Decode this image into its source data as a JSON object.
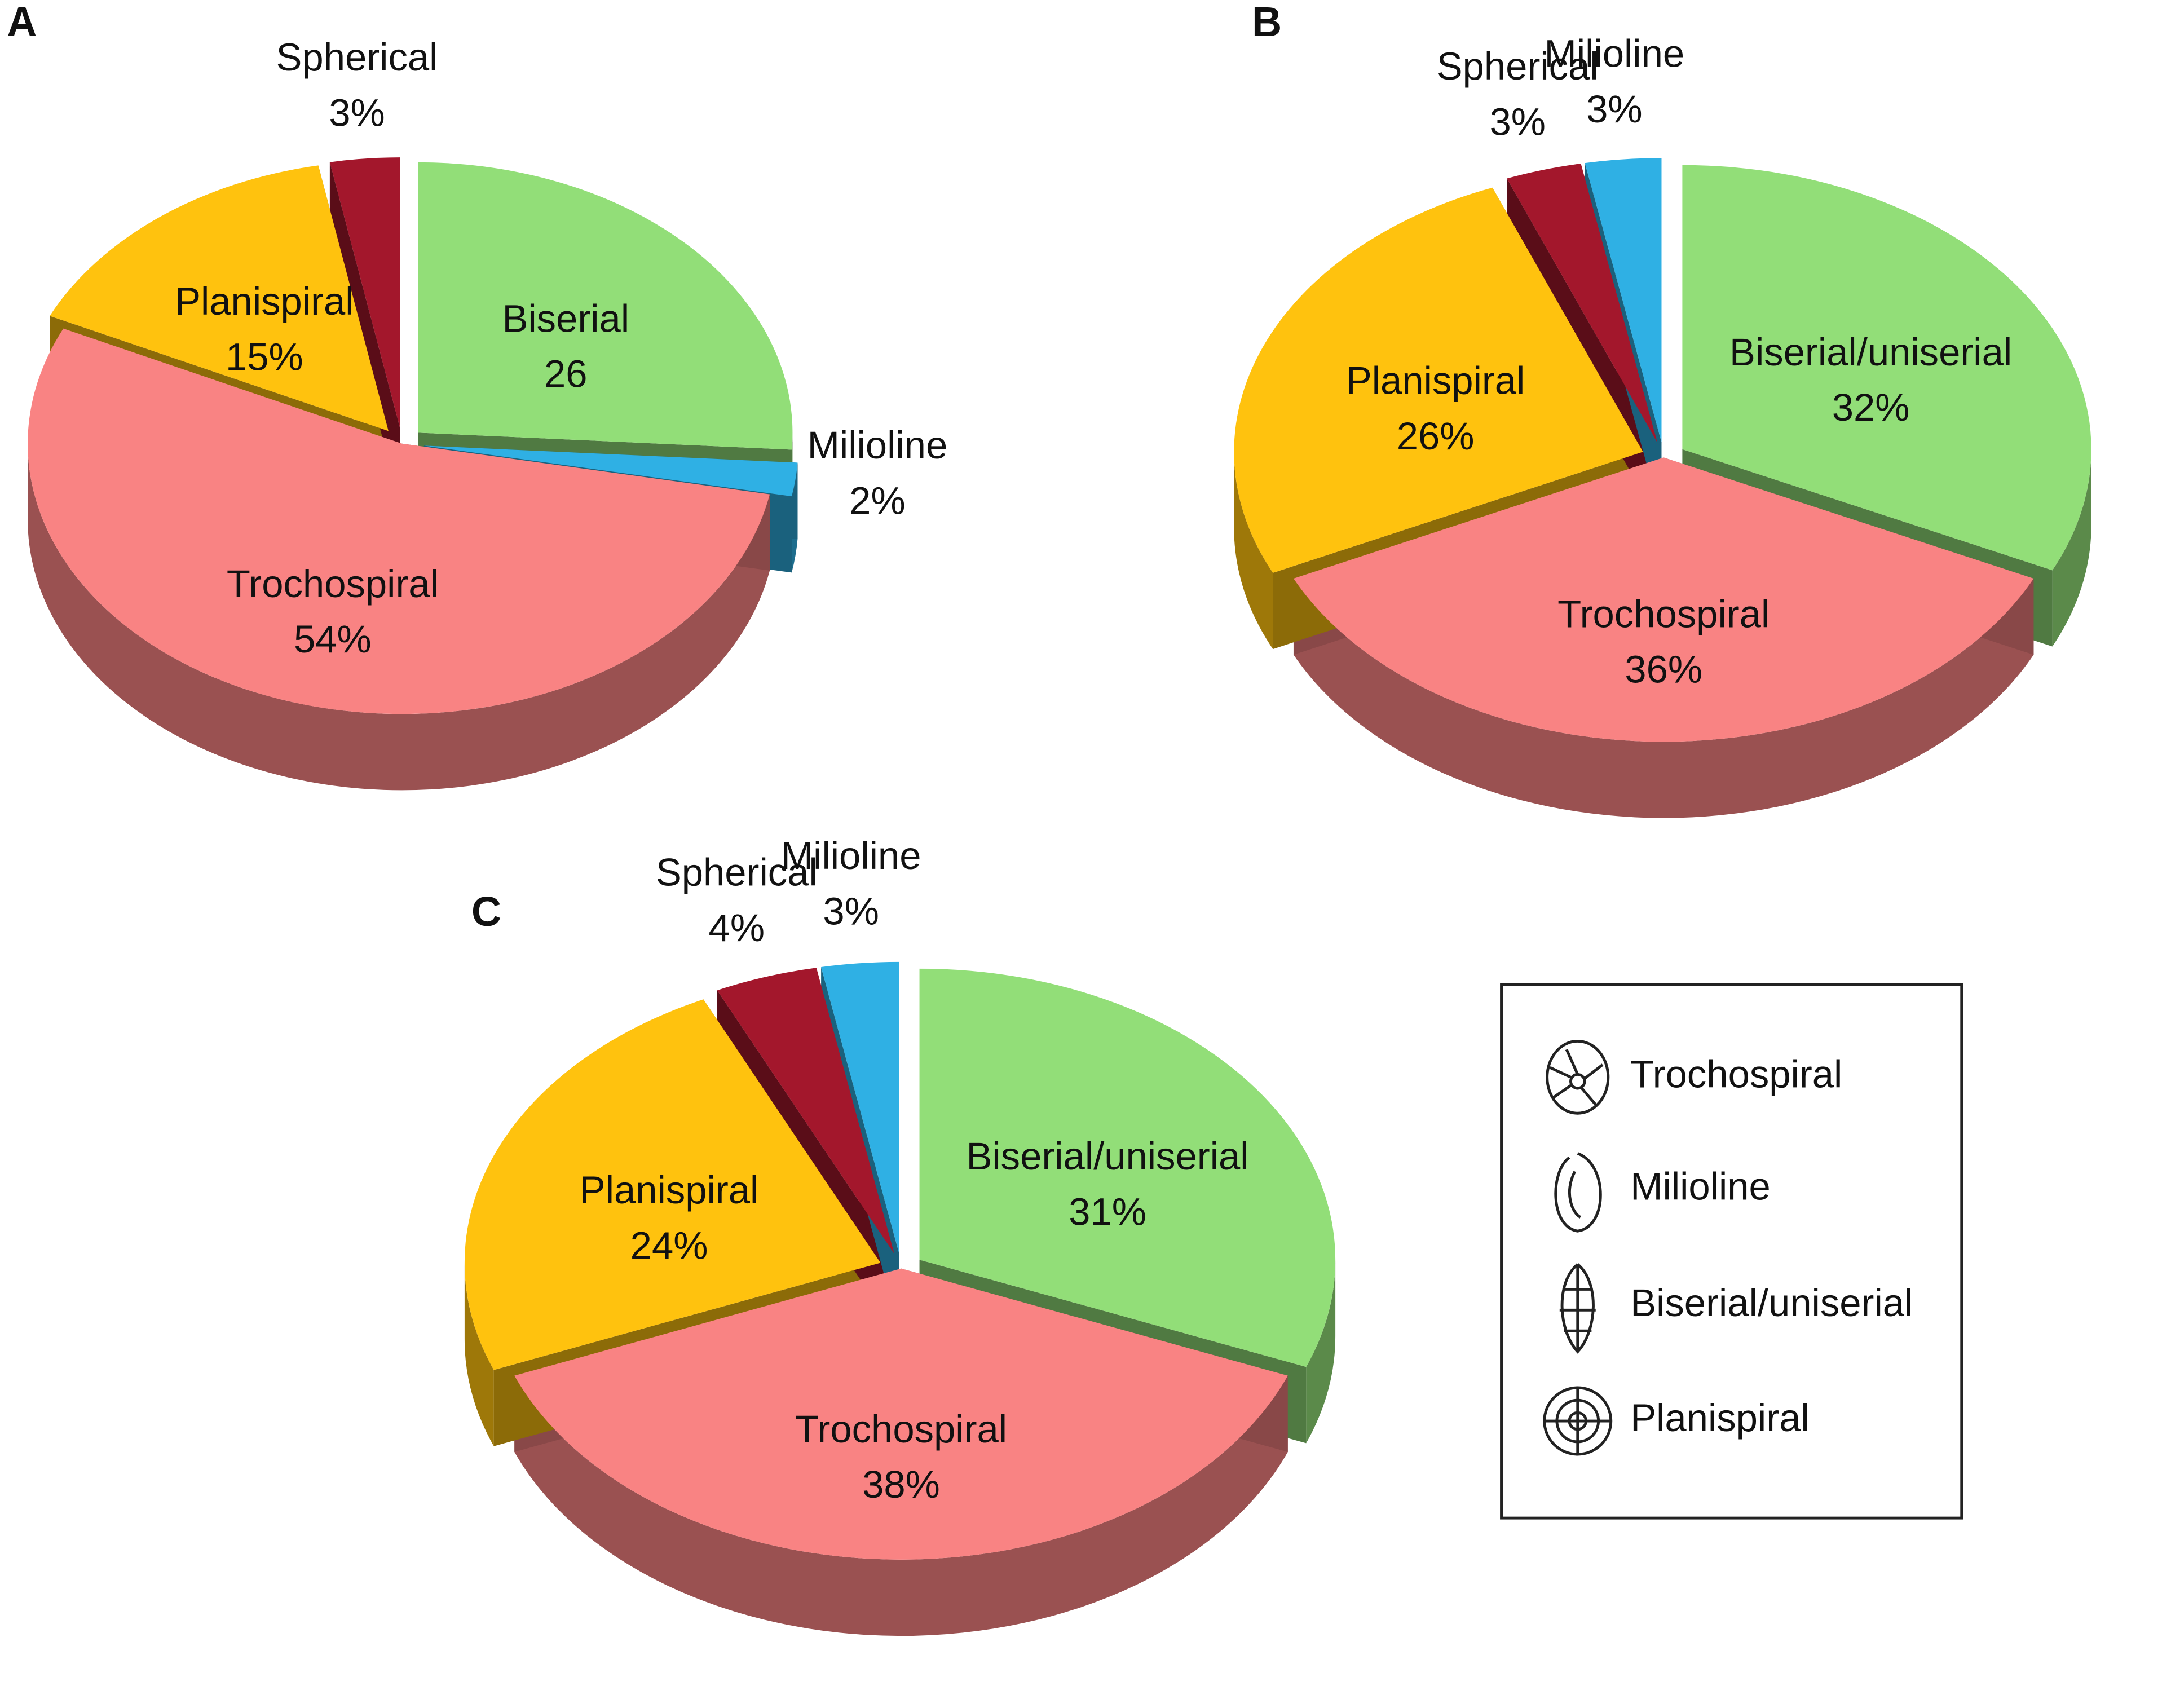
{
  "chart_data": [
    {
      "type": "pie",
      "panel": "A",
      "categories": [
        "Biserial",
        "Milioline",
        "Trochospiral",
        "Planispiral",
        "Spherical"
      ],
      "values": [
        26,
        2,
        54,
        15,
        3
      ],
      "value_labels": [
        "26",
        "2%",
        "54%",
        "15%",
        "3%"
      ],
      "colors": [
        "#92de78",
        "#2fb0e4",
        "#f98383",
        "#ffc20e",
        "#a3172c"
      ]
    },
    {
      "type": "pie",
      "panel": "B",
      "categories": [
        "Biserial/uniserial",
        "Trochospiral",
        "Planispiral",
        "Spherical",
        "Milioline"
      ],
      "values": [
        32,
        36,
        26,
        3,
        3
      ],
      "value_labels": [
        "32%",
        "36%",
        "26%",
        "3%",
        "3%"
      ],
      "colors": [
        "#92de78",
        "#f98383",
        "#ffc20e",
        "#a3172c",
        "#2fb0e4"
      ]
    },
    {
      "type": "pie",
      "panel": "C",
      "categories": [
        "Biserial/uniserial",
        "Trochospiral",
        "Planispiral",
        "Spherical",
        "Milioline"
      ],
      "values": [
        31,
        38,
        24,
        4,
        3
      ],
      "value_labels": [
        "31%",
        "38%",
        "24%",
        "4%",
        "3%"
      ],
      "colors": [
        "#92de78",
        "#f98383",
        "#ffc20e",
        "#a3172c",
        "#2fb0e4"
      ]
    }
  ],
  "legend": [
    "Trochospiral",
    "Milioline",
    "Biserial/uniserial",
    "Planispiral"
  ]
}
